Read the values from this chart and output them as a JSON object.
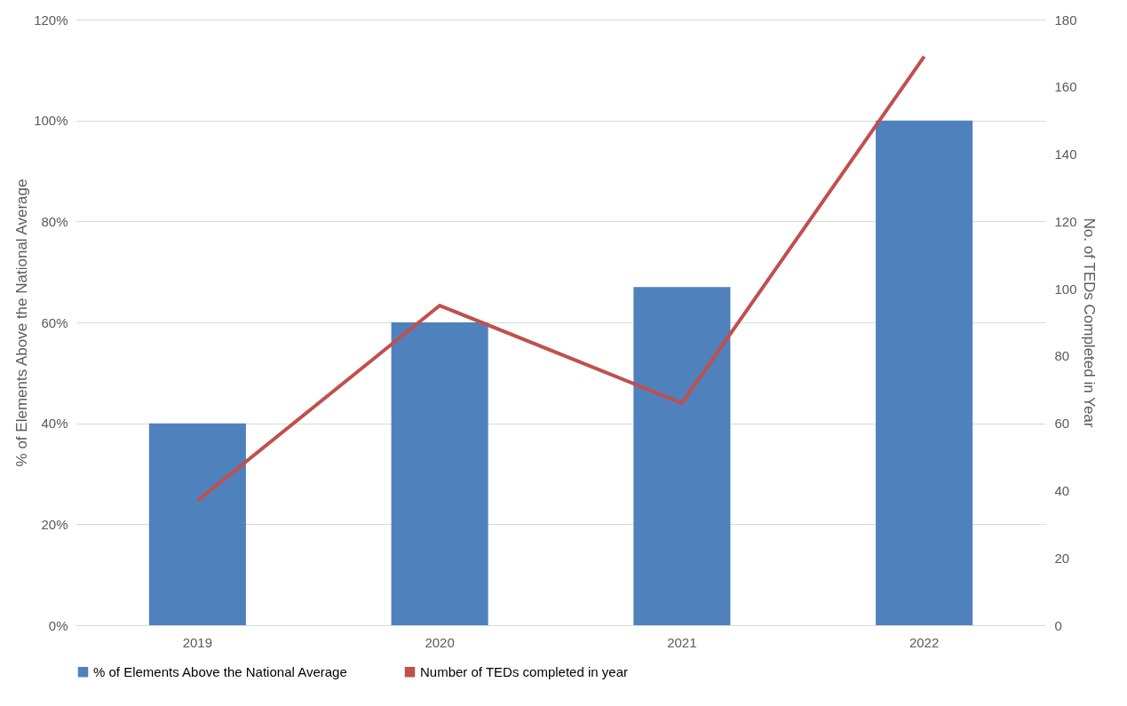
{
  "chart_data": {
    "type": "bar",
    "categories": [
      "2019",
      "2020",
      "2021",
      "2022"
    ],
    "ylabel": "% of Elements Above the National Average",
    "y2label": "No. of TEDs Completed in Year",
    "series": [
      {
        "name": "% of Elements Above the National Average",
        "color": "#4f81bd",
        "values": [
          40,
          60,
          67,
          100
        ]
      },
      {
        "name": "Number of TEDs completed in year",
        "type": "line",
        "axis": "y2",
        "color": "#c0504d",
        "values": [
          37,
          95,
          66,
          169
        ]
      }
    ],
    "ylim": [
      0,
      120
    ],
    "yticks": [
      {
        "value": 0,
        "label": "0%"
      },
      {
        "value": 20,
        "label": "20%"
      },
      {
        "value": 40,
        "label": "40%"
      },
      {
        "value": 60,
        "label": "60%"
      },
      {
        "value": 80,
        "label": "80%"
      },
      {
        "value": 100,
        "label": "100%"
      },
      {
        "value": 120,
        "label": "120%"
      }
    ],
    "y2lim": [
      0,
      180
    ],
    "y2ticks": [
      0,
      20,
      40,
      60,
      80,
      100,
      120,
      140,
      160,
      180
    ],
    "grid": "y",
    "legend": "bottom",
    "marker": "none",
    "line_style": "solid"
  }
}
